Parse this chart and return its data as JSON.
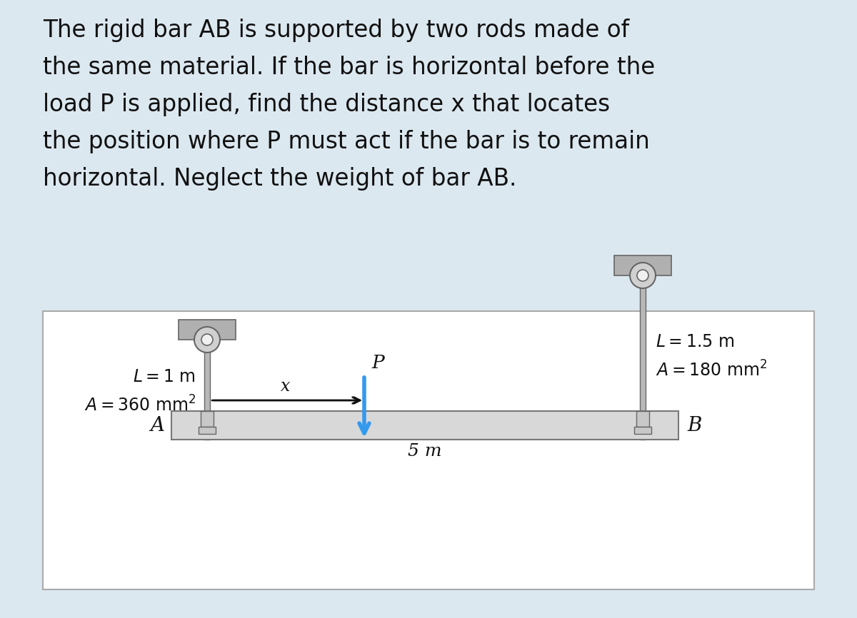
{
  "bg_color": "#dce8f0",
  "diagram_bg": "#ffffff",
  "text_color": "#111111",
  "title_lines": [
    "The rigid bar AB is supported by two rods made of",
    "the same material. If the bar is horizontal before the",
    "load P is applied, find the distance x that locates",
    "the position where P must act if the bar is to remain",
    "horizontal. Neglect the weight of bar AB."
  ],
  "title_fontsize": 23.5,
  "bar_label_A": "A",
  "bar_label_B": "B",
  "span_label": "5 m",
  "x_label": "x",
  "P_label": "P",
  "rod_A_L": "L = 1 m",
  "rod_A_A": "A = 360 mm",
  "rod_B_L": "L = 1.5 m",
  "rod_B_A": "A = 180 mm",
  "bar_color": "#d8d8d8",
  "bar_stroke": "#777777",
  "rod_color": "#b8b8b8",
  "rod_stroke": "#666666",
  "ceil_plate_color": "#b0b0b0",
  "ceil_plate_stroke": "#666666",
  "pin_outer_color": "#d0d0d0",
  "pin_inner_color": "#f0f0f0",
  "pin_stroke": "#666666",
  "support_color": "#c8c8c8",
  "support_stroke": "#666666",
  "arrow_color": "#3399ee",
  "text_arrow_color": "#111111",
  "label_fontsize": 17,
  "span_fontsize": 18
}
